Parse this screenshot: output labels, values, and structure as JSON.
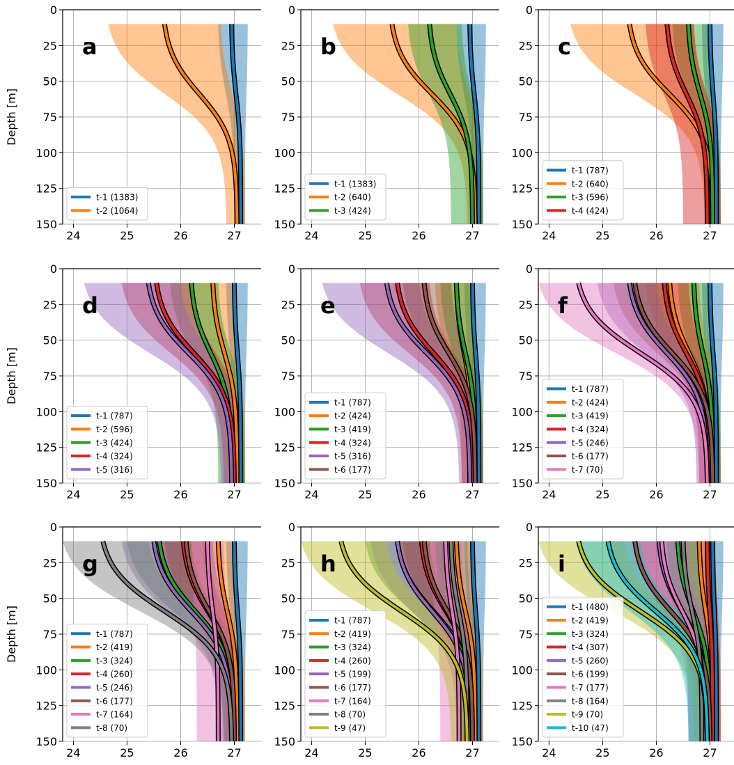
{
  "chart_data": [
    {
      "type": "line",
      "panel_letter": "a",
      "ylabel": "Depth [m]",
      "xlim": [
        23.8,
        27.5
      ],
      "ylim": [
        150,
        0
      ],
      "xticks": [
        24,
        25,
        26,
        27
      ],
      "yticks": [
        0,
        25,
        50,
        75,
        100,
        125,
        150
      ],
      "grid": true,
      "legend_position": "lower-left",
      "series": [
        {
          "name": "t-1 (1383)",
          "color": "#1f77b4",
          "surface": 26.95,
          "deep": 27.12,
          "band_surface": [
            26.7,
            27.25
          ],
          "band_deep": [
            27.0,
            27.2
          ]
        },
        {
          "name": "t-2 (1064)",
          "color": "#ff7f0e",
          "surface": 25.7,
          "deep": 27.05,
          "band_surface": [
            24.65,
            26.75
          ],
          "band_deep": [
            26.85,
            27.2
          ]
        }
      ]
    },
    {
      "type": "line",
      "panel_letter": "b",
      "ylabel": "",
      "xlim": [
        23.8,
        27.5
      ],
      "ylim": [
        150,
        0
      ],
      "xticks": [
        24,
        25,
        26,
        27
      ],
      "yticks": [
        0,
        25,
        50,
        75,
        100,
        125,
        150
      ],
      "grid": true,
      "legend_position": "lower-left",
      "series": [
        {
          "name": "t-1 (1383)",
          "color": "#1f77b4",
          "surface": 26.95,
          "deep": 27.12,
          "band_surface": [
            26.7,
            27.25
          ],
          "band_deep": [
            27.0,
            27.2
          ]
        },
        {
          "name": "t-2 (640)",
          "color": "#ff7f0e",
          "surface": 25.5,
          "deep": 27.05,
          "band_surface": [
            24.4,
            26.7
          ],
          "band_deep": [
            26.9,
            27.2
          ]
        },
        {
          "name": "t-3 (424)",
          "color": "#2ca02c",
          "surface": 26.2,
          "deep": 27.0,
          "band_surface": [
            25.8,
            26.8
          ],
          "band_deep": [
            26.6,
            27.2
          ]
        }
      ]
    },
    {
      "type": "line",
      "panel_letter": "c",
      "ylabel": "",
      "xlim": [
        23.8,
        27.5
      ],
      "ylim": [
        150,
        0
      ],
      "xticks": [
        24,
        25,
        26,
        27
      ],
      "yticks": [
        0,
        25,
        50,
        75,
        100,
        125,
        150
      ],
      "grid": true,
      "legend_position": "lower-left",
      "series": [
        {
          "name": "t-1 (787)",
          "color": "#1f77b4",
          "surface": 27.0,
          "deep": 27.12,
          "band_surface": [
            26.85,
            27.25
          ],
          "band_deep": [
            27.0,
            27.2
          ]
        },
        {
          "name": "t-2 (640)",
          "color": "#ff7f0e",
          "surface": 25.5,
          "deep": 27.05,
          "band_surface": [
            24.4,
            26.7
          ],
          "band_deep": [
            26.9,
            27.2
          ]
        },
        {
          "name": "t-3 (596)",
          "color": "#2ca02c",
          "surface": 26.6,
          "deep": 27.05,
          "band_surface": [
            26.3,
            26.95
          ],
          "band_deep": [
            26.9,
            27.2
          ]
        },
        {
          "name": "t-4 (424)",
          "color": "#d62728",
          "surface": 26.2,
          "deep": 26.95,
          "band_surface": [
            25.8,
            26.7
          ],
          "band_deep": [
            26.5,
            27.2
          ]
        }
      ]
    },
    {
      "type": "line",
      "panel_letter": "d",
      "ylabel": "Depth [m]",
      "xlim": [
        23.8,
        27.5
      ],
      "ylim": [
        150,
        0
      ],
      "xticks": [
        24,
        25,
        26,
        27
      ],
      "yticks": [
        0,
        25,
        50,
        75,
        100,
        125,
        150
      ],
      "grid": true,
      "legend_position": "lower-left",
      "series": [
        {
          "name": "t-1 (787)",
          "color": "#1f77b4",
          "surface": 27.0,
          "deep": 27.12,
          "band_surface": [
            26.85,
            27.25
          ],
          "band_deep": [
            27.0,
            27.2
          ]
        },
        {
          "name": "t-2 (596)",
          "color": "#ff7f0e",
          "surface": 26.6,
          "deep": 27.05,
          "band_surface": [
            26.2,
            26.95
          ],
          "band_deep": [
            26.9,
            27.2
          ]
        },
        {
          "name": "t-3 (424)",
          "color": "#2ca02c",
          "surface": 26.2,
          "deep": 26.95,
          "band_surface": [
            25.8,
            26.7
          ],
          "band_deep": [
            26.7,
            27.2
          ]
        },
        {
          "name": "t-4 (324)",
          "color": "#d62728",
          "surface": 25.55,
          "deep": 27.0,
          "band_surface": [
            24.9,
            26.2
          ],
          "band_deep": [
            26.8,
            27.15
          ]
        },
        {
          "name": "t-5 (316)",
          "color": "#9467bd",
          "surface": 25.4,
          "deep": 26.95,
          "band_surface": [
            24.2,
            26.0
          ],
          "band_deep": [
            26.75,
            27.15
          ]
        }
      ]
    },
    {
      "type": "line",
      "panel_letter": "e",
      "ylabel": "",
      "xlim": [
        23.8,
        27.5
      ],
      "ylim": [
        150,
        0
      ],
      "xticks": [
        24,
        25,
        26,
        27
      ],
      "yticks": [
        0,
        25,
        50,
        75,
        100,
        125,
        150
      ],
      "grid": true,
      "legend_position": "lower-left",
      "series": [
        {
          "name": "t-1 (787)",
          "color": "#1f77b4",
          "surface": 27.0,
          "deep": 27.12,
          "band_surface": [
            26.85,
            27.25
          ],
          "band_deep": [
            27.0,
            27.2
          ]
        },
        {
          "name": "t-2 (424)",
          "color": "#ff7f0e",
          "surface": 26.7,
          "deep": 27.0,
          "band_surface": [
            26.3,
            26.95
          ],
          "band_deep": [
            26.8,
            27.2
          ]
        },
        {
          "name": "t-3 (419)",
          "color": "#2ca02c",
          "surface": 26.7,
          "deep": 27.05,
          "band_surface": [
            26.4,
            26.95
          ],
          "band_deep": [
            26.9,
            27.2
          ]
        },
        {
          "name": "t-4 (324)",
          "color": "#d62728",
          "surface": 25.6,
          "deep": 27.0,
          "band_surface": [
            24.9,
            26.2
          ],
          "band_deep": [
            26.8,
            27.15
          ]
        },
        {
          "name": "t-5 (316)",
          "color": "#9467bd",
          "surface": 25.4,
          "deep": 26.95,
          "band_surface": [
            24.2,
            26.0
          ],
          "band_deep": [
            26.75,
            27.15
          ]
        },
        {
          "name": "t-6 (177)",
          "color": "#8c564b",
          "surface": 26.1,
          "deep": 27.05,
          "band_surface": [
            25.7,
            26.6
          ],
          "band_deep": [
            26.9,
            27.2
          ]
        }
      ]
    },
    {
      "type": "line",
      "panel_letter": "f",
      "ylabel": "",
      "xlim": [
        23.8,
        27.5
      ],
      "ylim": [
        150,
        0
      ],
      "xticks": [
        24,
        25,
        26,
        27
      ],
      "yticks": [
        0,
        25,
        50,
        75,
        100,
        125,
        150
      ],
      "grid": true,
      "legend_position": "lower-left",
      "series": [
        {
          "name": "t-1 (787)",
          "color": "#1f77b4",
          "surface": 27.0,
          "deep": 27.12,
          "band_surface": [
            26.85,
            27.25
          ],
          "band_deep": [
            27.0,
            27.2
          ]
        },
        {
          "name": "t-2 (424)",
          "color": "#ff7f0e",
          "surface": 26.25,
          "deep": 27.0,
          "band_surface": [
            25.8,
            26.8
          ],
          "band_deep": [
            26.8,
            27.2
          ]
        },
        {
          "name": "t-3 (419)",
          "color": "#2ca02c",
          "surface": 26.7,
          "deep": 27.05,
          "band_surface": [
            26.4,
            26.95
          ],
          "band_deep": [
            26.9,
            27.2
          ]
        },
        {
          "name": "t-4 (324)",
          "color": "#d62728",
          "surface": 26.15,
          "deep": 27.0,
          "band_surface": [
            25.6,
            26.6
          ],
          "band_deep": [
            26.8,
            27.15
          ]
        },
        {
          "name": "t-5 (246)",
          "color": "#9467bd",
          "surface": 25.5,
          "deep": 26.95,
          "band_surface": [
            24.9,
            26.0
          ],
          "band_deep": [
            26.75,
            27.15
          ]
        },
        {
          "name": "t-6 (177)",
          "color": "#8c564b",
          "surface": 25.6,
          "deep": 27.05,
          "band_surface": [
            25.2,
            26.2
          ],
          "band_deep": [
            26.9,
            27.2
          ]
        },
        {
          "name": "t-7 (70)",
          "color": "#e377c2",
          "surface": 24.55,
          "deep": 26.95,
          "band_surface": [
            23.8,
            25.4
          ],
          "band_deep": [
            26.8,
            27.15
          ]
        }
      ]
    },
    {
      "type": "line",
      "panel_letter": "g",
      "ylabel": "Depth [m]",
      "xlim": [
        23.8,
        27.5
      ],
      "ylim": [
        150,
        0
      ],
      "xticks": [
        24,
        25,
        26,
        27
      ],
      "yticks": [
        0,
        25,
        50,
        75,
        100,
        125,
        150
      ],
      "grid": true,
      "legend_position": "lower-left",
      "series": [
        {
          "name": "t-1 (787)",
          "color": "#1f77b4",
          "surface": 27.0,
          "deep": 27.12,
          "band_surface": [
            26.85,
            27.25
          ],
          "band_deep": [
            27.0,
            27.2
          ]
        },
        {
          "name": "t-2 (419)",
          "color": "#ff7f0e",
          "surface": 26.7,
          "deep": 27.05,
          "band_surface": [
            26.4,
            26.95
          ],
          "band_deep": [
            26.9,
            27.2
          ]
        },
        {
          "name": "t-3 (324)",
          "color": "#2ca02c",
          "surface": 25.6,
          "deep": 27.0,
          "band_surface": [
            25.0,
            26.2
          ],
          "band_deep": [
            26.8,
            27.15
          ]
        },
        {
          "name": "t-4 (260)",
          "color": "#d62728",
          "surface": 26.05,
          "deep": 27.0,
          "band_surface": [
            25.6,
            26.5
          ],
          "band_deep": [
            26.8,
            27.15
          ]
        },
        {
          "name": "t-5 (246)",
          "color": "#9467bd",
          "surface": 25.5,
          "deep": 26.95,
          "band_surface": [
            24.9,
            26.0
          ],
          "band_deep": [
            26.7,
            27.15
          ]
        },
        {
          "name": "t-6 (177)",
          "color": "#8c564b",
          "surface": 26.1,
          "deep": 27.0,
          "band_surface": [
            25.7,
            26.6
          ],
          "band_deep": [
            26.85,
            27.15
          ]
        },
        {
          "name": "t-7 (164)",
          "color": "#e377c2",
          "surface": 26.5,
          "deep": 26.7,
          "band_surface": [
            26.2,
            26.8
          ],
          "band_deep": [
            26.3,
            26.95
          ]
        },
        {
          "name": "t-8 (70)",
          "color": "#7f7f7f",
          "surface": 24.55,
          "deep": 26.95,
          "band_surface": [
            23.8,
            25.4
          ],
          "band_deep": [
            26.8,
            27.15
          ]
        }
      ]
    },
    {
      "type": "line",
      "panel_letter": "h",
      "ylabel": "",
      "xlim": [
        23.8,
        27.5
      ],
      "ylim": [
        150,
        0
      ],
      "xticks": [
        24,
        25,
        26,
        27
      ],
      "yticks": [
        0,
        25,
        50,
        75,
        100,
        125,
        150
      ],
      "grid": true,
      "legend_position": "lower-left",
      "series": [
        {
          "name": "t-1 (787)",
          "color": "#1f77b4",
          "surface": 27.0,
          "deep": 27.12,
          "band_surface": [
            26.85,
            27.25
          ],
          "band_deep": [
            27.0,
            27.2
          ]
        },
        {
          "name": "t-2 (419)",
          "color": "#ff7f0e",
          "surface": 26.7,
          "deep": 27.05,
          "band_surface": [
            26.4,
            26.95
          ],
          "band_deep": [
            26.9,
            27.2
          ]
        },
        {
          "name": "t-3 (324)",
          "color": "#2ca02c",
          "surface": 25.6,
          "deep": 27.0,
          "band_surface": [
            25.0,
            26.2
          ],
          "band_deep": [
            26.8,
            27.15
          ]
        },
        {
          "name": "t-4 (260)",
          "color": "#d62728",
          "surface": 26.05,
          "deep": 27.0,
          "band_surface": [
            25.6,
            26.5
          ],
          "band_deep": [
            26.8,
            27.15
          ]
        },
        {
          "name": "t-5 (199)",
          "color": "#9467bd",
          "surface": 25.6,
          "deep": 26.95,
          "band_surface": [
            25.1,
            26.1
          ],
          "band_deep": [
            26.7,
            27.15
          ]
        },
        {
          "name": "t-6 (177)",
          "color": "#8c564b",
          "surface": 26.1,
          "deep": 27.0,
          "band_surface": [
            25.7,
            26.6
          ],
          "band_deep": [
            26.85,
            27.15
          ]
        },
        {
          "name": "t-7 (164)",
          "color": "#e377c2",
          "surface": 26.5,
          "deep": 26.75,
          "band_surface": [
            26.2,
            26.8
          ],
          "band_deep": [
            26.4,
            26.95
          ]
        },
        {
          "name": "t-8 (70)",
          "color": "#7f7f7f",
          "surface": 26.6,
          "deep": 26.9,
          "band_surface": [
            26.3,
            26.9
          ],
          "band_deep": [
            26.7,
            27.1
          ]
        },
        {
          "name": "t-9 (47)",
          "color": "#bcbd22",
          "surface": 24.55,
          "deep": 26.9,
          "band_surface": [
            23.8,
            25.4
          ],
          "band_deep": [
            26.6,
            27.1
          ]
        }
      ]
    },
    {
      "type": "line",
      "panel_letter": "i",
      "ylabel": "",
      "xlim": [
        23.8,
        27.5
      ],
      "ylim": [
        150,
        0
      ],
      "xticks": [
        24,
        25,
        26,
        27
      ],
      "yticks": [
        0,
        25,
        50,
        75,
        100,
        125,
        150
      ],
      "grid": true,
      "legend_position": "lower-left",
      "series": [
        {
          "name": "t-1 (480)",
          "color": "#1f77b4",
          "surface": 27.05,
          "deep": 27.12,
          "band_surface": [
            26.9,
            27.25
          ],
          "band_deep": [
            27.0,
            27.2
          ]
        },
        {
          "name": "t-2 (419)",
          "color": "#ff7f0e",
          "surface": 26.8,
          "deep": 27.05,
          "band_surface": [
            26.5,
            26.95
          ],
          "band_deep": [
            26.9,
            27.2
          ]
        },
        {
          "name": "t-3 (324)",
          "color": "#2ca02c",
          "surface": 26.4,
          "deep": 27.0,
          "band_surface": [
            26.0,
            26.8
          ],
          "band_deep": [
            26.8,
            27.15
          ]
        },
        {
          "name": "t-4 (307)",
          "color": "#d62728",
          "surface": 26.95,
          "deep": 27.05,
          "band_surface": [
            26.8,
            27.1
          ],
          "band_deep": [
            26.9,
            27.2
          ]
        },
        {
          "name": "t-5 (260)",
          "color": "#9467bd",
          "surface": 26.05,
          "deep": 26.95,
          "band_surface": [
            25.6,
            26.5
          ],
          "band_deep": [
            26.7,
            27.15
          ]
        },
        {
          "name": "t-6 (199)",
          "color": "#8c564b",
          "surface": 25.6,
          "deep": 27.0,
          "band_surface": [
            25.1,
            26.1
          ],
          "band_deep": [
            26.8,
            27.15
          ]
        },
        {
          "name": "t-7 (177)",
          "color": "#e377c2",
          "surface": 26.1,
          "deep": 26.9,
          "band_surface": [
            25.7,
            26.6
          ],
          "band_deep": [
            26.6,
            27.1
          ]
        },
        {
          "name": "t-8 (164)",
          "color": "#7f7f7f",
          "surface": 26.5,
          "deep": 26.85,
          "band_surface": [
            26.2,
            26.8
          ],
          "band_deep": [
            26.6,
            27.05
          ]
        },
        {
          "name": "t-9 (70)",
          "color": "#bcbd22",
          "surface": 24.55,
          "deep": 26.95,
          "band_surface": [
            23.8,
            25.4
          ],
          "band_deep": [
            26.7,
            27.1
          ]
        },
        {
          "name": "t-10 (47)",
          "color": "#17becf",
          "surface": 25.1,
          "deep": 26.95,
          "band_surface": [
            24.5,
            25.7
          ],
          "band_deep": [
            26.6,
            27.15
          ]
        }
      ]
    }
  ]
}
